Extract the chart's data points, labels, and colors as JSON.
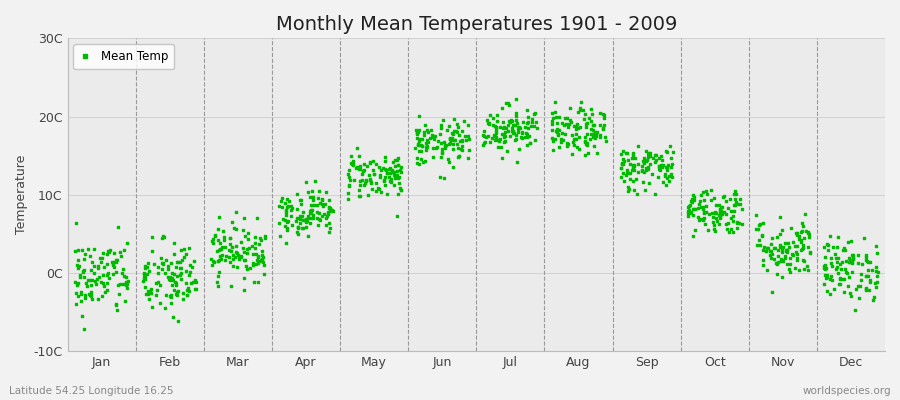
{
  "title": "Monthly Mean Temperatures 1901 - 2009",
  "ylabel": "Temperature",
  "xlabel_bottom_left": "Latitude 54.25 Longitude 16.25",
  "xlabel_bottom_right": "worldspecies.org",
  "ylim": [
    -10,
    30
  ],
  "yticks": [
    -10,
    0,
    10,
    20,
    30
  ],
  "ytick_labels": [
    "-10C",
    "0C",
    "10C",
    "20C",
    "30C"
  ],
  "months": [
    "Jan",
    "Feb",
    "Mar",
    "Apr",
    "May",
    "Jun",
    "Jul",
    "Aug",
    "Sep",
    "Oct",
    "Nov",
    "Dec"
  ],
  "n_years": 109,
  "dot_color": "#00bb00",
  "dot_size": 2,
  "background_color": "#f2f2f2",
  "plot_bg_color": "#ebebeb",
  "legend_label": "Mean Temp",
  "mean_temps": [
    -0.5,
    -0.8,
    2.8,
    7.8,
    12.5,
    16.5,
    18.5,
    18.0,
    13.5,
    8.0,
    3.2,
    0.5
  ],
  "std_temps": [
    2.5,
    2.5,
    1.8,
    1.5,
    1.5,
    1.5,
    1.5,
    1.5,
    1.5,
    1.5,
    2.0,
    2.0
  ],
  "vline_color": "#999999",
  "hgrid_color": "#cccccc",
  "title_fontsize": 14,
  "axis_label_fontsize": 9,
  "tick_label_fontsize": 9,
  "month_tick_positions": [
    1,
    2,
    3,
    4,
    5,
    6,
    7,
    8,
    9,
    10,
    11,
    12
  ],
  "vline_positions": [
    1.5,
    2.5,
    3.5,
    4.5,
    5.5,
    6.5,
    7.5,
    8.5,
    9.5,
    10.5,
    11.5
  ],
  "xlim": [
    0.5,
    12.5
  ]
}
